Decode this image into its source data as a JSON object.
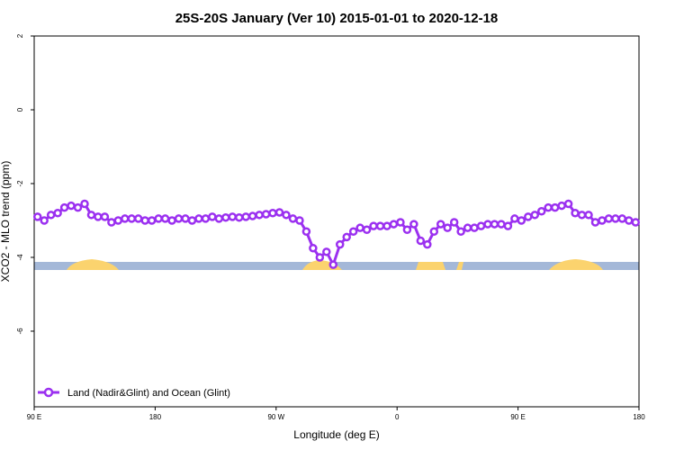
{
  "chart_data": {
    "type": "line",
    "title": "25S-20S January (Ver 10)   2015-01-01 to 2020-12-18",
    "xlabel": "Longitude (deg E)",
    "ylabel": "XCO2 - MLO trend (ppm)",
    "xlim": [
      90,
      540
    ],
    "xticks": [
      {
        "value": 90,
        "label": "90 E"
      },
      180,
      {
        "value": 270,
        "label": "90 W"
      },
      {
        "value": 360,
        "label": "0"
      },
      {
        "value": 450,
        "label": "90 E"
      },
      {
        "value": 540,
        "label": "180"
      }
    ],
    "ylim": [
      -8.05,
      2
    ],
    "yticks": [
      2,
      0,
      -2,
      -4,
      -6
    ],
    "legend": "bottom-left",
    "x": [
      92.5,
      97.5,
      102.5,
      107.5,
      112.5,
      117.5,
      122.5,
      127.5,
      132.5,
      137.5,
      142.5,
      147.5,
      152.5,
      157.5,
      162.5,
      167.5,
      172.5,
      177.5,
      182.5,
      187.5,
      192.5,
      197.5,
      202.5,
      207.5,
      212.5,
      217.5,
      222.5,
      227.5,
      232.5,
      237.5,
      242.5,
      247.5,
      252.5,
      257.5,
      262.5,
      267.5,
      272.5,
      277.5,
      282.5,
      287.5,
      292.5,
      297.5,
      302.5,
      307.5,
      312.5,
      317.5,
      322.5,
      327.5,
      332.5,
      337.5,
      342.5,
      347.5,
      352.5,
      357.5,
      362.5,
      367.5,
      372.5,
      377.5,
      382.5,
      387.5,
      392.5,
      397.5,
      402.5,
      407.5,
      412.5,
      417.5,
      422.5,
      427.5,
      432.5,
      437.5,
      442.5,
      447.5,
      452.5,
      457.5,
      462.5,
      467.5,
      472.5,
      477.5,
      482.5,
      487.5,
      492.5,
      497.5,
      502.5,
      507.5,
      512.5,
      517.5,
      522.5,
      527.5,
      532.5,
      537.5
    ],
    "series": [
      {
        "name": "Land (Nadir&Glint) and Ocean (Glint)",
        "color": "#9b30f0",
        "values": [
          -2.9,
          -3.0,
          -2.85,
          -2.8,
          -2.65,
          -2.6,
          -2.65,
          -2.55,
          -2.85,
          -2.9,
          -2.9,
          -3.05,
          -3.0,
          -2.95,
          -2.95,
          -2.95,
          -3.0,
          -3.0,
          -2.95,
          -2.95,
          -3.0,
          -2.95,
          -2.95,
          -3.0,
          -2.95,
          -2.95,
          -2.9,
          -2.95,
          -2.92,
          -2.9,
          -2.92,
          -2.9,
          -2.88,
          -2.85,
          -2.83,
          -2.8,
          -2.78,
          -2.85,
          -2.95,
          -3.0,
          -3.3,
          -3.75,
          -4.0,
          -3.85,
          -4.2,
          -3.65,
          -3.45,
          -3.3,
          -3.2,
          -3.25,
          -3.15,
          -3.15,
          -3.15,
          -3.1,
          -3.05,
          -3.25,
          -3.1,
          -3.55,
          -3.65,
          -3.3,
          -3.1,
          -3.2,
          -3.05,
          -3.3,
          -3.2,
          -3.2,
          -3.15,
          -3.1,
          -3.1,
          -3.1,
          -3.15,
          -2.95,
          -3.0,
          -2.9,
          -2.85,
          -2.75,
          -2.65,
          -2.65,
          -2.6,
          -2.55,
          -2.8,
          -2.85,
          -2.85,
          -3.05,
          -3.0,
          -2.95,
          -2.95,
          -2.95,
          -3.0,
          -3.05
        ]
      }
    ]
  }
}
